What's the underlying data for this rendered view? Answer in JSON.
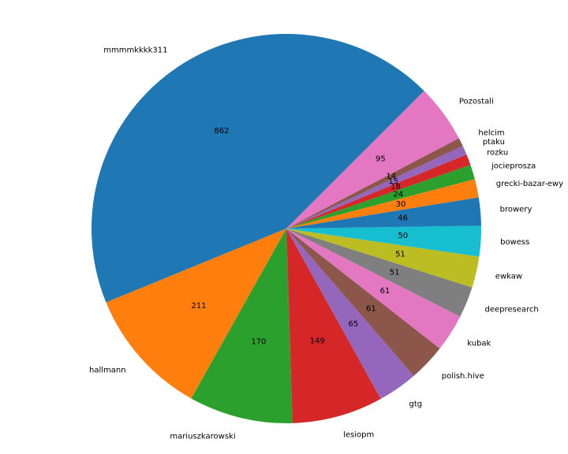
{
  "chart_data": {
    "type": "pie",
    "labels": [
      "mmmmkkkk311",
      "hallmann",
      "mariuszkarowski",
      "lesiopm",
      "gtg",
      "polish.hive",
      "kubak",
      "deepresearch",
      "ewkaw",
      "bowess",
      "browery",
      "grecki-bazar-ewy",
      "jocieprosza",
      "rozku",
      "ptaku",
      "helcim",
      "Pozostali"
    ],
    "values": [
      862,
      211,
      170,
      149,
      65,
      61,
      61,
      51,
      51,
      50,
      46,
      30,
      24,
      18,
      15,
      14,
      95
    ],
    "colors": [
      "#1f77b4",
      "#ff7f0e",
      "#2ca02c",
      "#d62728",
      "#9467bd",
      "#8c564b",
      "#e377c2",
      "#7f7f7f",
      "#bcbd22",
      "#17becf",
      "#1f77b4",
      "#ff7f0e",
      "#2ca02c",
      "#d62728",
      "#9467bd",
      "#8c564b",
      "#e377c2"
    ],
    "start_angle_deg": 45,
    "direction": "counterclockwise",
    "title": ""
  }
}
